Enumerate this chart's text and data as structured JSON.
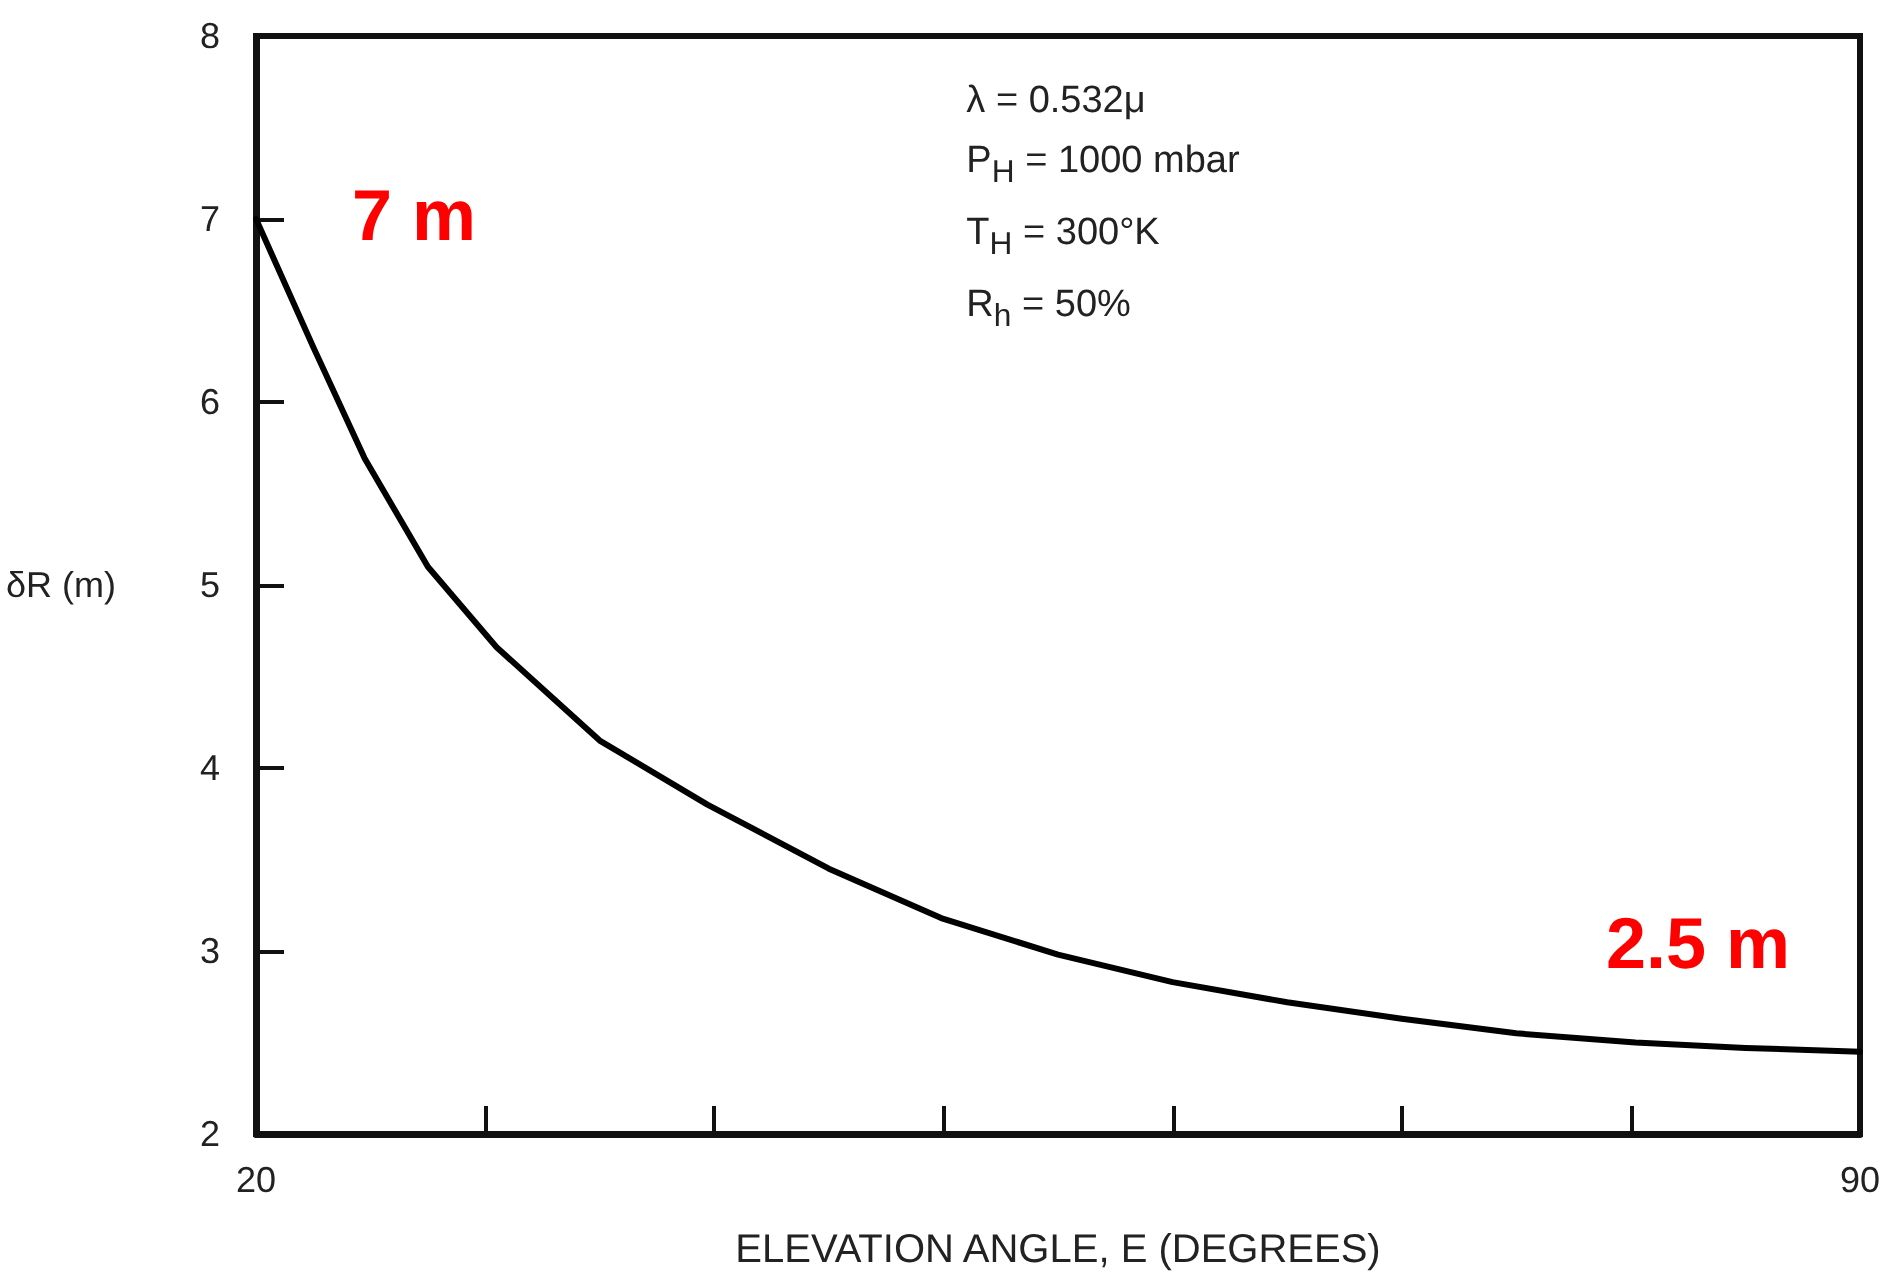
{
  "chart_data": {
    "type": "line",
    "xlabel": "ELEVATION ANGLE, E (DEGREES)",
    "ylabel": "δR (m)",
    "x": [
      20,
      22.5,
      24.75,
      27.5,
      30.5,
      35,
      39.7,
      45,
      49.9,
      55,
      60,
      65,
      70,
      75,
      80.2,
      85,
      90
    ],
    "series": [
      {
        "color": "#000000",
        "values": [
          7.0,
          6.3,
          5.69,
          5.1,
          4.66,
          4.15,
          3.8,
          3.45,
          3.18,
          2.98,
          2.83,
          2.72,
          2.63,
          2.55,
          2.5,
          2.47,
          2.45
        ]
      }
    ],
    "xlim": [
      20,
      90
    ],
    "xticks": [
      20,
      {
        "value": 30,
        "label": null
      },
      {
        "value": 40,
        "label": null
      },
      {
        "value": 50,
        "label": null
      },
      {
        "value": 60,
        "label": null
      },
      {
        "value": 70,
        "label": null
      },
      {
        "value": 80,
        "label": null
      },
      90
    ],
    "ylim": [
      2,
      8
    ],
    "yticks": [
      2,
      3,
      4,
      5,
      6,
      7,
      8
    ],
    "annotations": [
      {
        "text": "7 m",
        "x": 20,
        "y": 7
      },
      {
        "text": "2.5 m",
        "x": 90,
        "y": 2.5
      },
      "λ = 0.532μ",
      "P$_{H}$ = 1000 mbar",
      "T$_{H}$ = 300°K",
      "R$_{h}$ = 50%"
    ],
    "grid": false,
    "marker": "none",
    "line_style": "solid"
  }
}
